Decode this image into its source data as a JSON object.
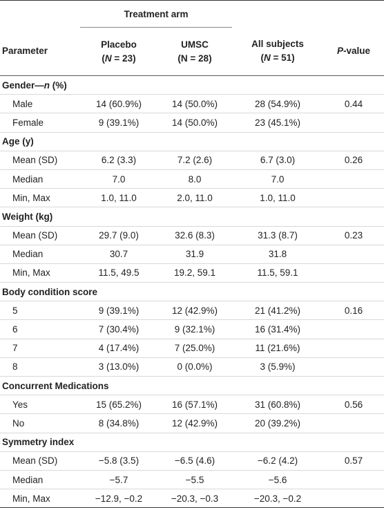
{
  "header": {
    "group": "Treatment arm",
    "parameter": "Parameter",
    "placebo": {
      "label": "Placebo",
      "n": [
        "(",
        "N",
        " = 23)"
      ]
    },
    "umsc": {
      "label": "UMSC",
      "n": [
        "(N = 28)"
      ]
    },
    "all": {
      "label": "All subjects",
      "n": [
        "(",
        "N",
        " = 51)"
      ]
    },
    "p": [
      "P",
      "-value"
    ]
  },
  "sections": [
    {
      "title": [
        "Gender—",
        "n",
        " (%)"
      ],
      "rows": [
        {
          "label": "Male",
          "placebo": "14 (60.9%)",
          "umsc": "14 (50.0%)",
          "all": "28 (54.9%)",
          "p": "0.44"
        },
        {
          "label": "Female",
          "placebo": "9 (39.1%)",
          "umsc": "14 (50.0%)",
          "all": "23 (45.1%)"
        }
      ]
    },
    {
      "title": [
        "Age (y)"
      ],
      "rows": [
        {
          "label": "Mean (SD)",
          "placebo": "6.2 (3.3)",
          "umsc": "7.2 (2.6)",
          "all": "6.7 (3.0)",
          "p": "0.26"
        },
        {
          "label": "Median",
          "placebo": "7.0",
          "umsc": "8.0",
          "all": "7.0"
        },
        {
          "label": "Min, Max",
          "placebo": "1.0, 11.0",
          "umsc": "2.0, 11.0",
          "all": "1.0, 11.0"
        }
      ]
    },
    {
      "title": [
        "Weight (kg)"
      ],
      "rows": [
        {
          "label": "Mean (SD)",
          "placebo": "29.7 (9.0)",
          "umsc": "32.6 (8.3)",
          "all": "31.3 (8.7)",
          "p": "0.23"
        },
        {
          "label": "Median",
          "placebo": "30.7",
          "umsc": "31.9",
          "all": "31.8"
        },
        {
          "label": "Min, Max",
          "placebo": "11.5, 49.5",
          "umsc": "19.2, 59.1",
          "all": "11.5, 59.1"
        }
      ]
    },
    {
      "title": [
        "Body condition score"
      ],
      "rows": [
        {
          "label": "5",
          "placebo": "9 (39.1%)",
          "umsc": "12 (42.9%)",
          "all": "21 (41.2%)",
          "p": "0.16"
        },
        {
          "label": "6",
          "placebo": "7 (30.4%)",
          "umsc": "9 (32.1%)",
          "all": "16 (31.4%)"
        },
        {
          "label": "7",
          "placebo": "4 (17.4%)",
          "umsc": "7 (25.0%)",
          "all": "11 (21.6%)"
        },
        {
          "label": "8",
          "placebo": "3 (13.0%)",
          "umsc": "0 (0.0%)",
          "all": "3 (5.9%)"
        }
      ]
    },
    {
      "title": [
        "Concurrent Medications"
      ],
      "rows": [
        {
          "label": "Yes",
          "placebo": "15 (65.2%)",
          "umsc": "16 (57.1%)",
          "all": "31 (60.8%)",
          "p": "0.56"
        },
        {
          "label": "No",
          "placebo": "8 (34.8%)",
          "umsc": "12 (42.9%)",
          "all": "20 (39.2%)"
        }
      ]
    },
    {
      "title": [
        "Symmetry index"
      ],
      "rows": [
        {
          "label": "Mean (SD)",
          "placebo": "−5.8 (3.5)",
          "umsc": "−6.5 (4.6)",
          "all": "−6.2 (4.2)",
          "p": "0.57"
        },
        {
          "label": "Median",
          "placebo": "−5.7",
          "umsc": "−5.5",
          "all": "−5.6"
        },
        {
          "label": "Min, Max",
          "placebo": "−12.9, −0.2",
          "umsc": "−20.3, −0.3",
          "all": "−20.3, −0.2"
        }
      ]
    }
  ]
}
